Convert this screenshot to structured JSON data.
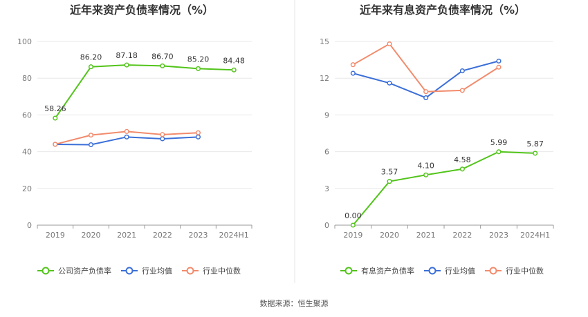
{
  "source": "数据来源：恒生聚源",
  "chart_data": [
    {
      "type": "line",
      "title": "近年来资产负债率情况（%）",
      "categories": [
        "2019",
        "2020",
        "2021",
        "2022",
        "2023",
        "2024H1"
      ],
      "ylim": [
        0,
        100
      ],
      "yticks": [
        0,
        20,
        40,
        60,
        80,
        100
      ],
      "series": [
        {
          "name": "公司资产负债率",
          "color": "#52c41a",
          "values": [
            58.26,
            86.2,
            87.18,
            86.7,
            85.2,
            84.48
          ],
          "labels": [
            "58.26",
            "86.20",
            "87.18",
            "86.70",
            "85.20",
            "84.48"
          ]
        },
        {
          "name": "行业均值",
          "color": "#3b6fd8",
          "values": [
            44.0,
            43.8,
            48.0,
            47.0,
            48.0,
            null
          ]
        },
        {
          "name": "行业中位数",
          "color": "#f28b6c",
          "values": [
            44.0,
            49.0,
            51.0,
            49.3,
            50.3,
            null
          ]
        }
      ],
      "legend": "bottom",
      "grid": true
    },
    {
      "type": "line",
      "title": "近年来有息资产负债率情况（%）",
      "categories": [
        "2019",
        "2020",
        "2021",
        "2022",
        "2023",
        "2024H1"
      ],
      "ylim": [
        0,
        15
      ],
      "yticks": [
        0,
        3,
        6,
        9,
        12,
        15
      ],
      "series": [
        {
          "name": "有息资产负债率",
          "color": "#52c41a",
          "values": [
            0.0,
            3.57,
            4.1,
            4.58,
            5.99,
            5.87
          ],
          "labels": [
            "0.00",
            "3.57",
            "4.10",
            "4.58",
            "5.99",
            "5.87"
          ]
        },
        {
          "name": "行业均值",
          "color": "#3b6fd8",
          "values": [
            12.4,
            11.6,
            10.4,
            12.6,
            13.4,
            null
          ]
        },
        {
          "name": "行业中位数",
          "color": "#f28b6c",
          "values": [
            13.1,
            14.8,
            10.9,
            11.0,
            12.9,
            null
          ]
        }
      ],
      "legend": "bottom",
      "grid": true
    }
  ]
}
